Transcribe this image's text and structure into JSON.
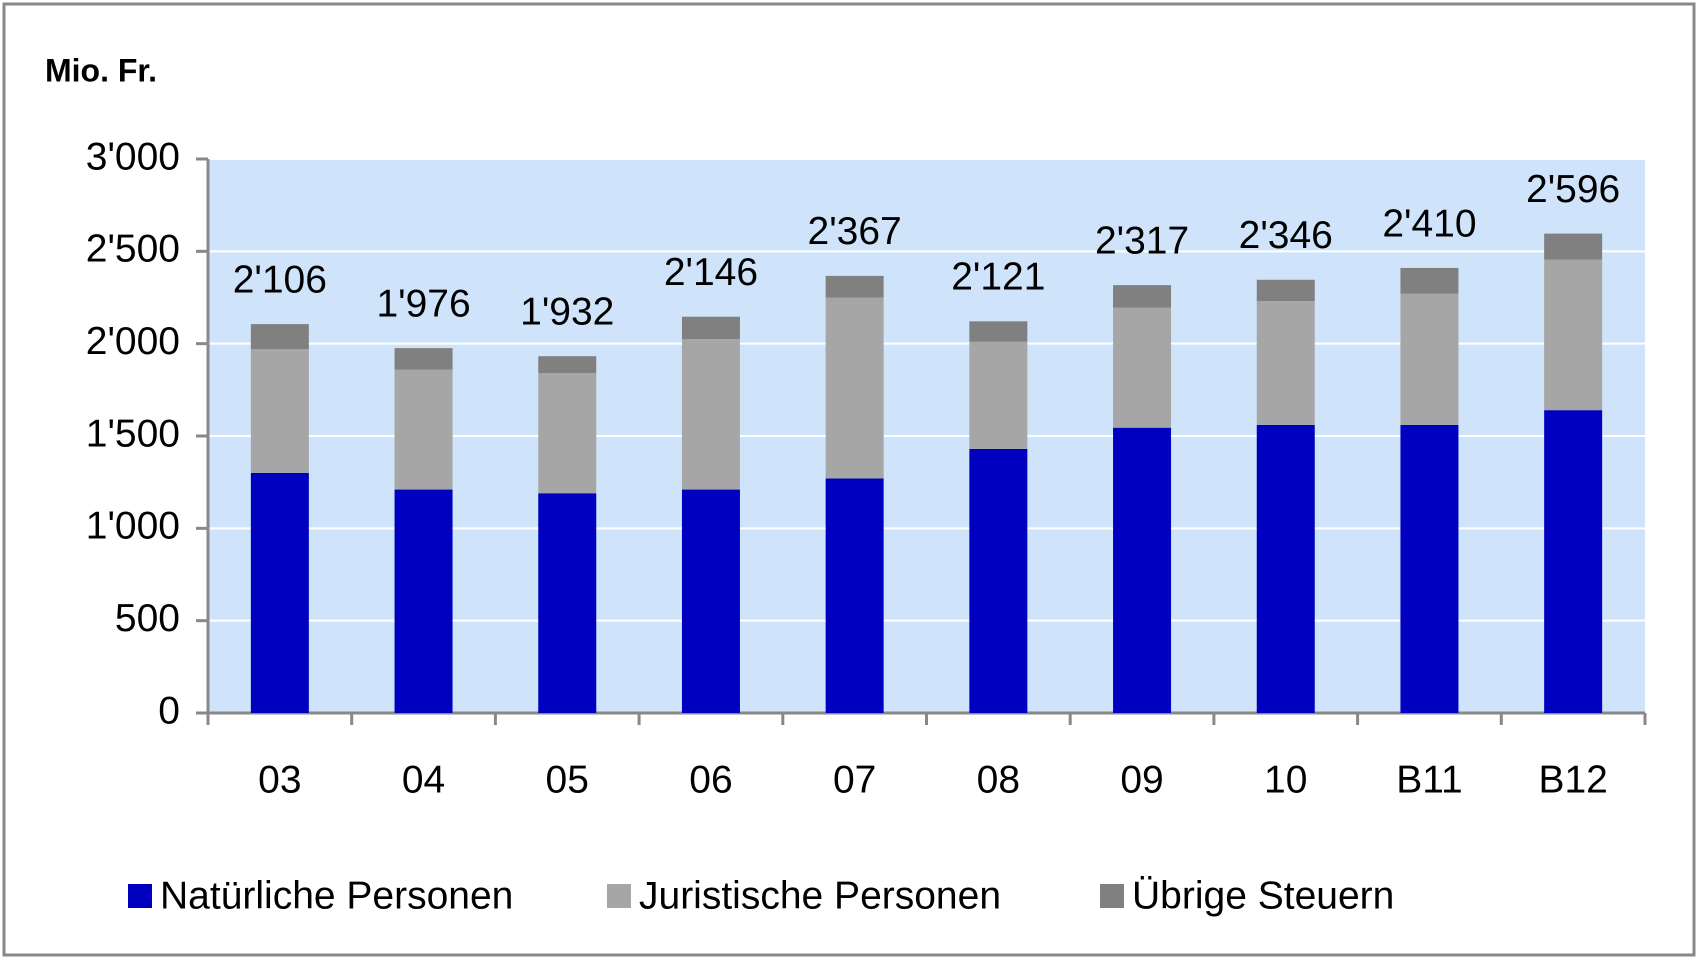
{
  "chart_data": {
    "type": "stacked_bar",
    "y_axis_label": "Mio. Fr.",
    "categories": [
      "03",
      "04",
      "05",
      "06",
      "07",
      "08",
      "09",
      "10",
      "B11",
      "B12"
    ],
    "series": [
      {
        "name": "Natürliche Personen",
        "color": "#0000c0",
        "values": [
          1300,
          1210,
          1190,
          1210,
          1270,
          1430,
          1545,
          1560,
          1560,
          1640
        ]
      },
      {
        "name": "Juristische Personen",
        "color": "#a6a6a6",
        "values": [
          670,
          650,
          650,
          815,
          980,
          580,
          650,
          670,
          710,
          815
        ]
      },
      {
        "name": "Übrige Steuern",
        "color": "#808080",
        "values": [
          136,
          116,
          92,
          121,
          117,
          111,
          122,
          116,
          140,
          141
        ]
      }
    ],
    "totals": [
      2106,
      1976,
      1932,
      2146,
      2367,
      2121,
      2317,
      2346,
      2410,
      2596
    ],
    "total_labels": [
      "2'106",
      "1'976",
      "1'932",
      "2'146",
      "2'367",
      "2'121",
      "2'317",
      "2'346",
      "2'410",
      "2'596"
    ],
    "ylim": [
      0,
      3000
    ],
    "yticks": [
      0,
      500,
      {
        "value": 1000,
        "label": "1'000"
      },
      {
        "value": 1500,
        "label": "1'500"
      },
      {
        "value": 2000,
        "label": "2'000"
      },
      {
        "value": 2500,
        "label": "2'500"
      },
      {
        "value": 3000,
        "label": "3'000"
      }
    ],
    "grid": true,
    "legend": "bottom"
  }
}
